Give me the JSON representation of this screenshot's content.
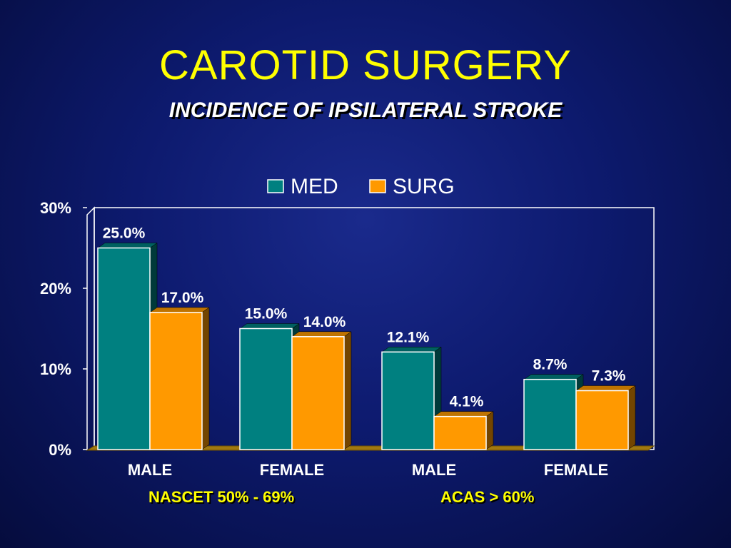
{
  "slide": {
    "title": "CAROTID SURGERY",
    "subtitle": "INCIDENCE OF IPSILATERAL STROKE",
    "footnotes": [
      "NASCET 50% - 69%",
      "ACAS > 60%"
    ]
  },
  "chart_data": {
    "type": "bar",
    "categories": [
      "MALE",
      "FEMALE",
      "MALE",
      "FEMALE"
    ],
    "series": [
      {
        "name": "MED",
        "color": "#008080",
        "values": [
          25.0,
          15.0,
          12.1,
          8.7
        ],
        "labels": [
          "25.0%",
          "15.0%",
          "12.1%",
          "8.7%"
        ]
      },
      {
        "name": "SURG",
        "color": "#ff9900",
        "values": [
          17.0,
          14.0,
          4.1,
          7.3
        ],
        "labels": [
          "17.0%",
          "14.0%",
          "4.1%",
          "7.3%"
        ]
      }
    ],
    "yticks": [
      "0%",
      "10%",
      "20%",
      "30%"
    ],
    "ylim": [
      0,
      30
    ],
    "legend": "top-center",
    "grid": false
  }
}
